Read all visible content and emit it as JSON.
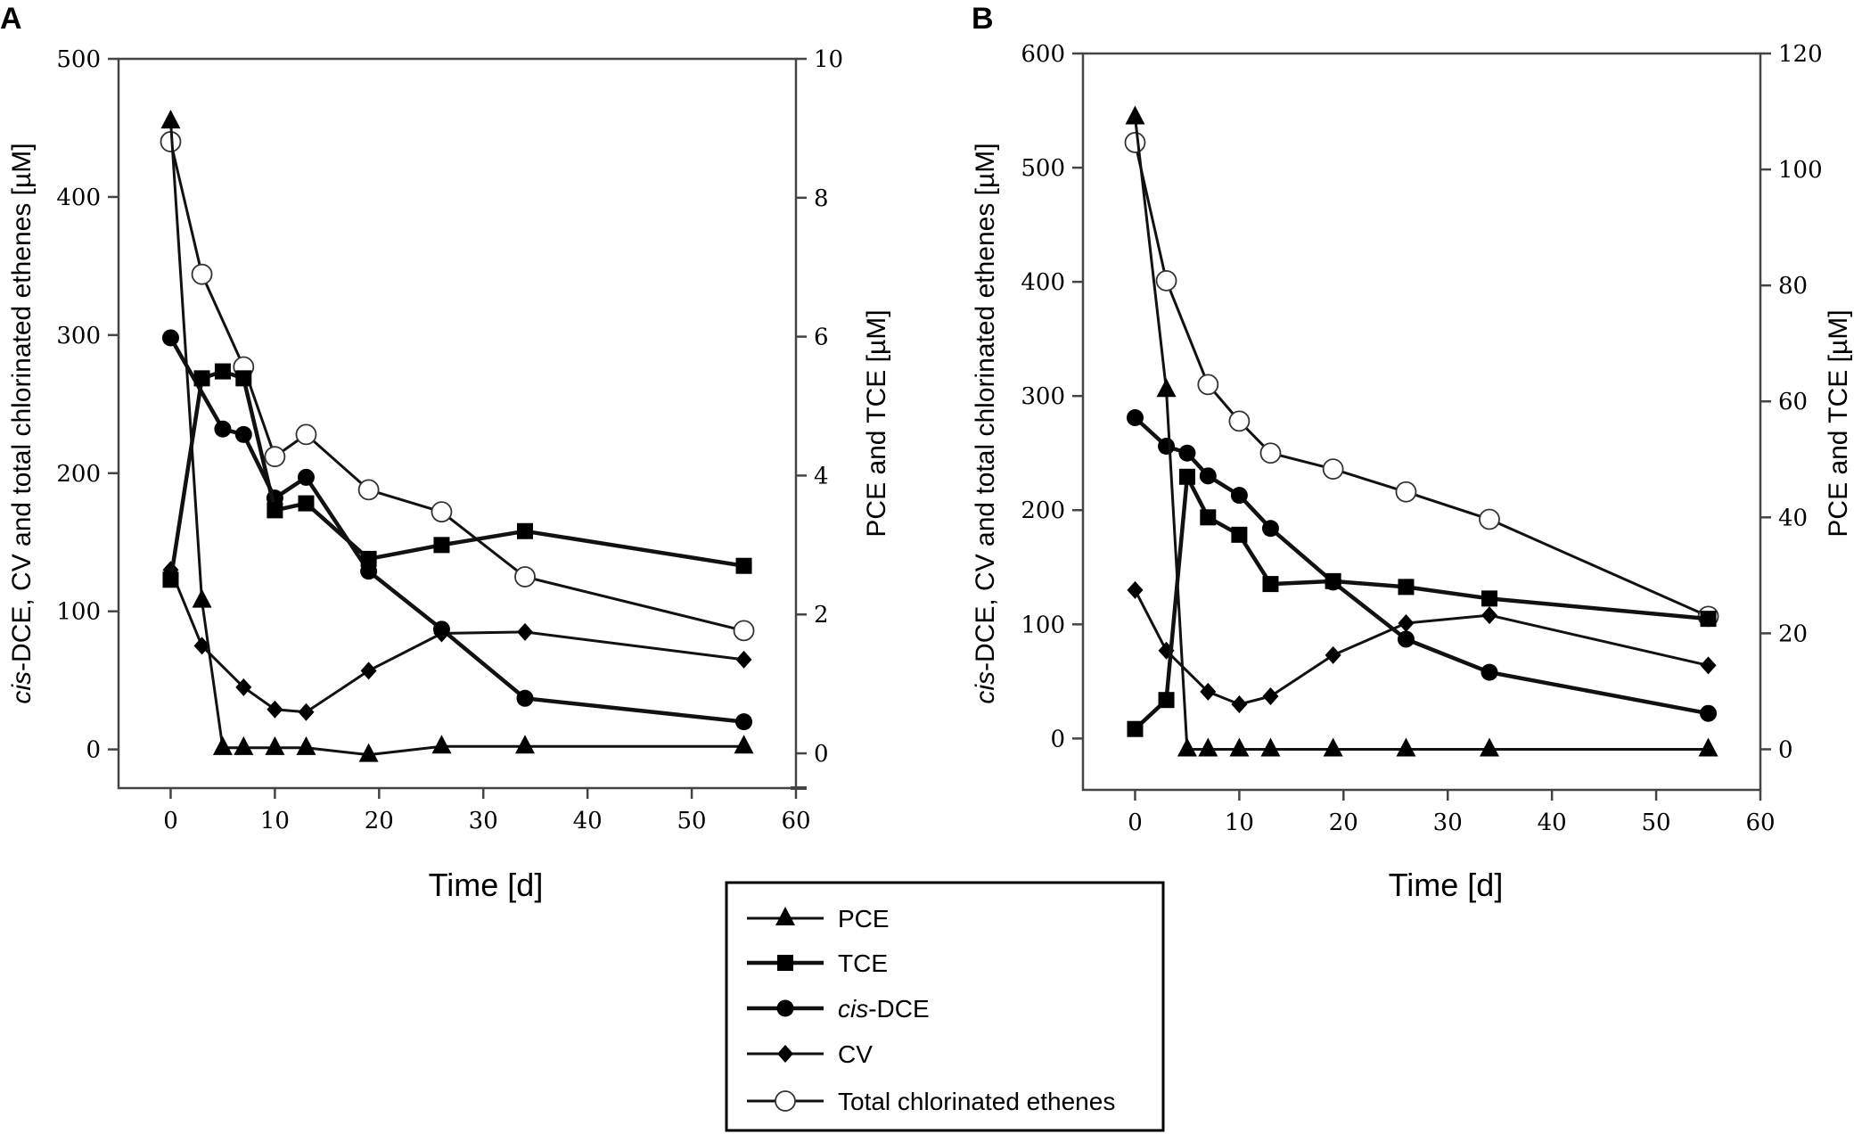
{
  "legend": {
    "entries": [
      {
        "key": "pce",
        "prefix": "",
        "italic": "",
        "suffix": "PCE",
        "marker": "triangle",
        "width": "thin"
      },
      {
        "key": "tce",
        "prefix": "",
        "italic": "",
        "suffix": "TCE",
        "marker": "square",
        "width": "thick"
      },
      {
        "key": "cis",
        "prefix": "",
        "italic": "cis",
        "suffix": "-DCE",
        "marker": "circle",
        "width": "thick"
      },
      {
        "key": "cv",
        "prefix": "",
        "italic": "",
        "suffix": "CV",
        "marker": "diamond",
        "width": "thin"
      },
      {
        "key": "total",
        "prefix": "",
        "italic": "",
        "suffix": "Total chlorinated ethenes",
        "marker": "open-circle",
        "width": "thin"
      }
    ]
  },
  "chart_data": [
    {
      "panel_label": "A",
      "type": "line",
      "xlabel": "Time [d]",
      "ylabel_left_italic": "cis",
      "ylabel_left_rest": "-DCE, CV and total chlorinated ethenes [µM]",
      "ylabel_right": "PCE and TCE [µM]",
      "xlim": [
        -5,
        60
      ],
      "ylim_left": [
        -28,
        500
      ],
      "ylim_right": [
        -0.5,
        10
      ],
      "xticks": [
        0,
        10,
        20,
        30,
        40,
        50,
        60
      ],
      "yticks_left": [
        0,
        100,
        200,
        300,
        400,
        500
      ],
      "yticks_right": [
        0,
        2,
        4,
        6,
        8,
        10
      ],
      "series": [
        {
          "key": "pce",
          "name": "PCE",
          "axis": "right",
          "x": [
            0,
            3,
            5,
            7,
            10,
            13,
            19,
            26,
            34,
            55
          ],
          "y": [
            9.1,
            2.2,
            0.08,
            0.08,
            0.08,
            0.08,
            -0.02,
            0.1,
            0.1,
            0.1
          ]
        },
        {
          "key": "tce",
          "name": "TCE",
          "axis": "right",
          "x": [
            0,
            3,
            5,
            7,
            10,
            13,
            19,
            26,
            34,
            55
          ],
          "y": [
            2.5,
            5.4,
            5.5,
            5.4,
            3.5,
            3.6,
            2.8,
            3.0,
            3.2,
            2.7
          ]
        },
        {
          "key": "cis",
          "name": "cis-DCE",
          "axis": "left",
          "x": [
            0,
            5,
            7,
            10,
            13,
            19,
            26,
            34,
            55
          ],
          "y": [
            298,
            232,
            228,
            182,
            197,
            129,
            87,
            37,
            20
          ]
        },
        {
          "key": "cv",
          "name": "CV",
          "axis": "left",
          "x": [
            0,
            3,
            7,
            10,
            13,
            19,
            26,
            34,
            55
          ],
          "y": [
            130,
            75,
            45,
            29,
            27,
            57,
            84,
            85,
            65
          ]
        },
        {
          "key": "total",
          "name": "Total chlorinated ethenes",
          "axis": "left",
          "x": [
            0,
            3,
            7,
            10,
            13,
            19,
            26,
            34,
            55
          ],
          "y": [
            440,
            344,
            277,
            212,
            228,
            188,
            172,
            125,
            86
          ]
        }
      ]
    },
    {
      "panel_label": "B",
      "type": "line",
      "xlabel": "Time [d]",
      "ylabel_left_italic": "cis",
      "ylabel_left_rest": "-DCE, CV and total chlorinated ethenes [µM]",
      "ylabel_right": "PCE and TCE [µM]",
      "xlim": [
        -5,
        60
      ],
      "ylim_left": [
        -45,
        600
      ],
      "ylim_right": [
        -7,
        120
      ],
      "xticks": [
        0,
        10,
        20,
        30,
        40,
        50,
        60
      ],
      "yticks_left": [
        0,
        100,
        200,
        300,
        400,
        500,
        600
      ],
      "yticks_right": [
        0,
        20,
        40,
        60,
        80,
        100,
        120
      ],
      "series": [
        {
          "key": "pce",
          "name": "PCE",
          "axis": "right",
          "x": [
            0,
            3,
            5,
            7,
            10,
            13,
            19,
            26,
            34,
            55
          ],
          "y": [
            109,
            62,
            0,
            0,
            0,
            0,
            0,
            0,
            0,
            0
          ]
        },
        {
          "key": "tce",
          "name": "TCE",
          "axis": "right",
          "x": [
            0,
            3,
            5,
            7,
            10,
            13,
            19,
            26,
            34,
            55
          ],
          "y": [
            3.5,
            8.5,
            47,
            40,
            37,
            28.5,
            29,
            28,
            26,
            22.5
          ]
        },
        {
          "key": "cis",
          "name": "cis-DCE",
          "axis": "left",
          "x": [
            0,
            3,
            5,
            7,
            10,
            13,
            19,
            26,
            34,
            55
          ],
          "y": [
            281,
            256,
            250,
            230,
            213,
            184,
            137,
            87,
            58,
            22
          ]
        },
        {
          "key": "cv",
          "name": "CV",
          "axis": "left",
          "x": [
            0,
            3,
            7,
            10,
            13,
            19,
            26,
            34,
            55
          ],
          "y": [
            130,
            77,
            41,
            30,
            37,
            73,
            101,
            108,
            64
          ]
        },
        {
          "key": "total",
          "name": "Total chlorinated ethenes",
          "axis": "left",
          "x": [
            0,
            3,
            7,
            10,
            13,
            19,
            26,
            34,
            55
          ],
          "y": [
            522,
            401,
            310,
            278,
            250,
            236,
            216,
            192,
            107
          ]
        }
      ]
    }
  ]
}
